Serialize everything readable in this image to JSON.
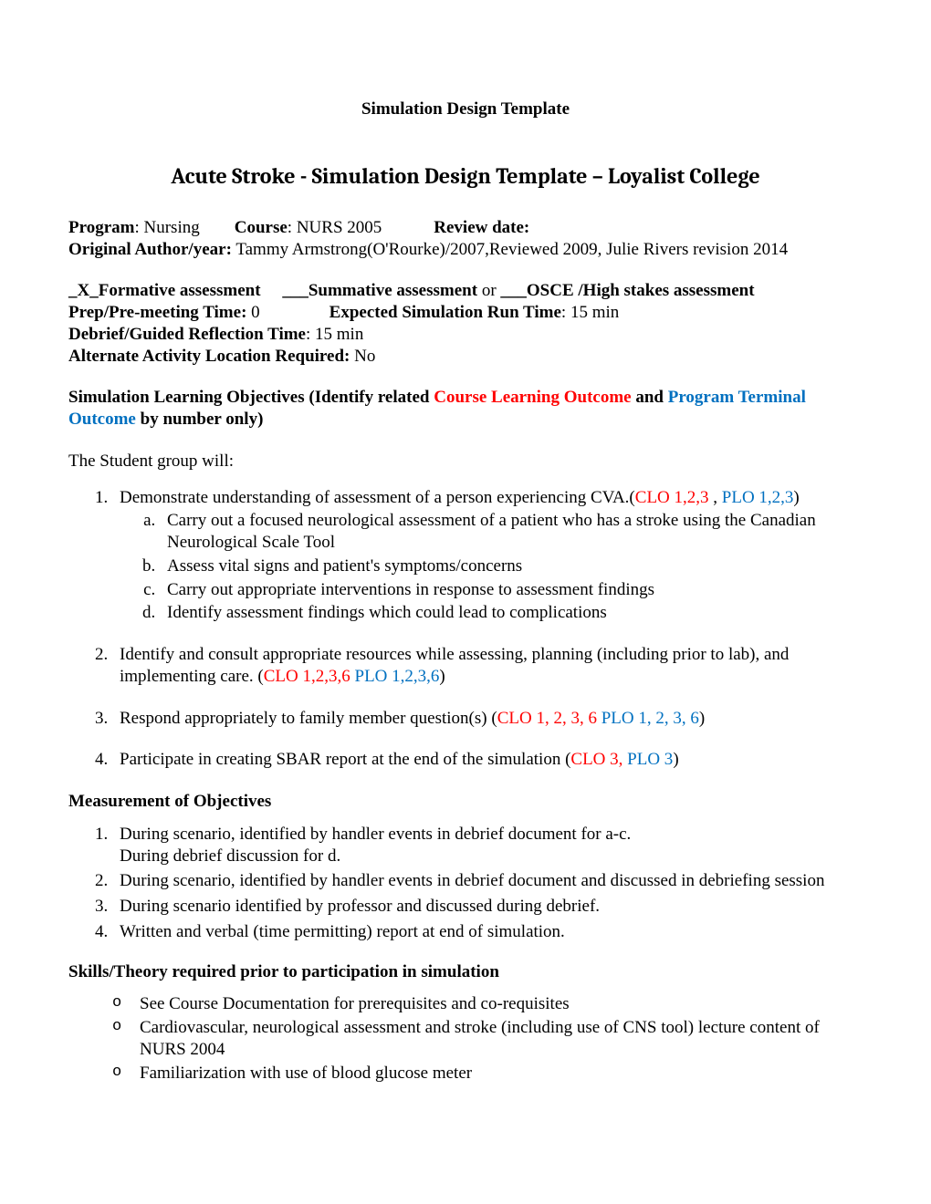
{
  "colors": {
    "red": "#ff0000",
    "blue": "#0070c0",
    "text": "#000000",
    "background": "#ffffff"
  },
  "header": "Simulation Design Template",
  "title": "Acute Stroke - Simulation Design Template – Loyalist College",
  "meta": {
    "program_label": "Program",
    "program_value": "Nursing",
    "course_label": "Course",
    "course_value": "NURS 2005",
    "review_label": "Review date:",
    "author_label": "Original Author/year:",
    "author_value": "Tammy Armstrong(O'Rourke)/2007,Reviewed 2009, Julie Rivers revision 2014"
  },
  "assessment": {
    "line1_prefix": "_X_",
    "formative": "Formative assessment",
    "gap1": "___",
    "summative": "Summative assessment",
    "or": " or ",
    "gap2": "___",
    "osce": "OSCE /High stakes assessment",
    "prep_label": "Prep/Pre-meeting Time:",
    "prep_value": "0",
    "runtime_label": "Expected Simulation Run Time",
    "runtime_value": "15 min",
    "debrief_label": "Debrief/Guided Reflection Time",
    "debrief_value": "15 min",
    "alt_label": "Alternate Activity Location Required:",
    "alt_value": "No"
  },
  "objectives_heading": {
    "pre": "Simulation Learning Objectives (Identify related ",
    "clo": "Course Learning Outcome",
    "mid": " and ",
    "pto": "Program Terminal Outcome",
    "post": " by number only)"
  },
  "intro": "The Student group will:",
  "obj1": {
    "text": "Demonstrate understanding of assessment of a person experiencing CVA.(",
    "clo": "CLO 1,2,3 ",
    "sep": " , ",
    "plo": "PLO 1,2,3",
    "close": ")",
    "a": "Carry out a focused neurological assessment of a patient who has a stroke using the Canadian Neurological Scale Tool",
    "b": " Assess vital signs and patient's symptoms/concerns",
    "c": "Carry out appropriate interventions in response to assessment findings",
    "d": "Identify assessment findings which could lead to complications"
  },
  "obj2": {
    "text": " Identify and consult appropriate resources while assessing, planning (including prior to lab), and implementing care. (",
    "clo": "CLO 1,2,3,6",
    "plo": "PLO 1,2,3,6",
    "close": ")"
  },
  "obj3": {
    "text": "Respond appropriately to family member question(s) (",
    "clo": "CLO 1, 2, 3, 6",
    "plo": "PLO 1, 2, 3, 6",
    "close": ")"
  },
  "obj4": {
    "text": "Participate in creating SBAR report at the end of the simulation (",
    "clo": "CLO 3,",
    "plo": "PLO 3",
    "close": ")"
  },
  "measurement_heading": "Measurement of Objectives",
  "measurement": {
    "m1a": "During scenario, identified by handler events in debrief document for a-c.",
    "m1b": "During debrief discussion for d.",
    "m2": "During scenario, identified by handler events in debrief document and discussed in debriefing session",
    "m3": "During scenario identified by professor and discussed during debrief.",
    "m4": "Written and verbal (time permitting) report at end of simulation."
  },
  "skills_heading": "Skills/Theory required prior to participation in simulation",
  "skills": {
    "s1": "See Course Documentation for prerequisites and co-requisites",
    "s2": "Cardiovascular, neurological assessment and stroke (including use of CNS tool) lecture content of NURS 2004",
    "s3": "Familiarization with use of blood glucose meter"
  }
}
